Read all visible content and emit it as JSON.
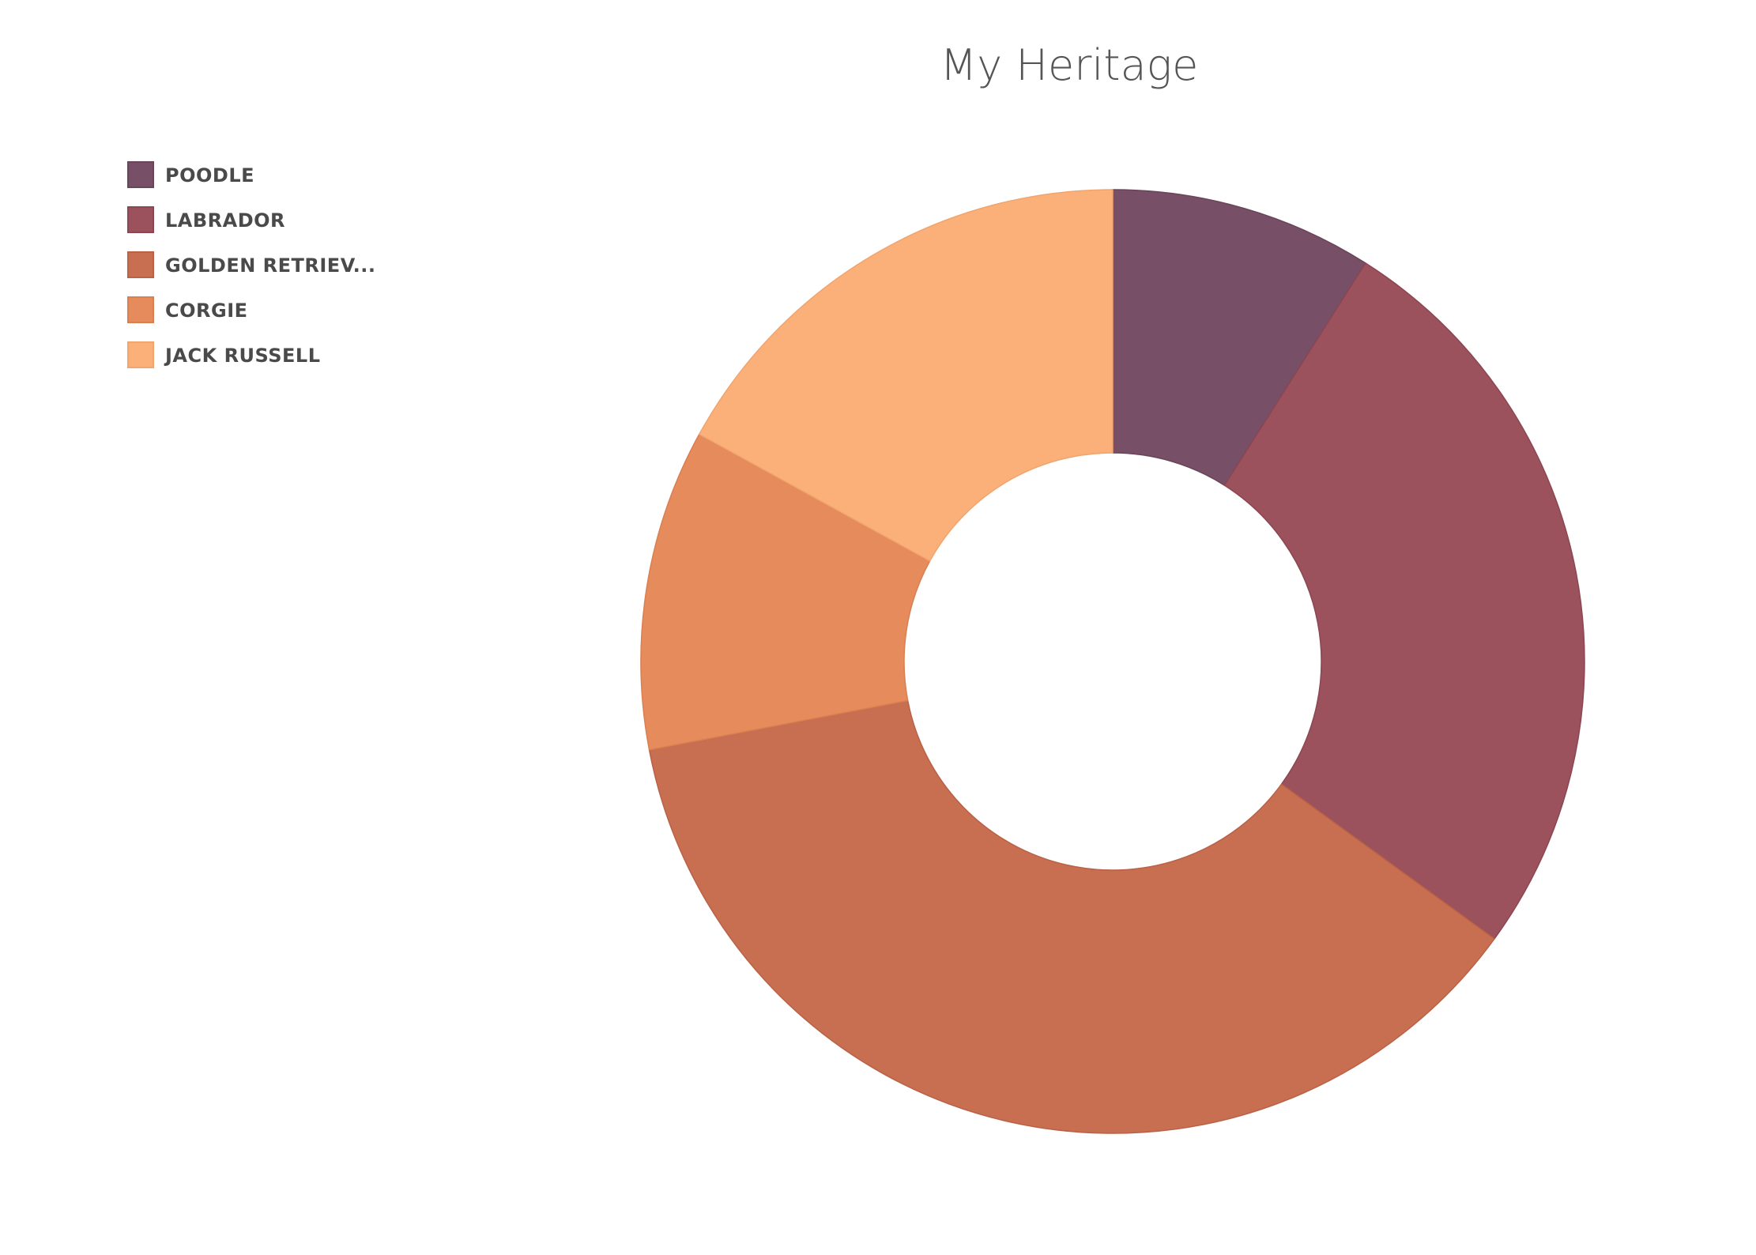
{
  "chart_data": {
    "type": "pie",
    "donut": true,
    "title": "My Heritage",
    "legend_position": "top-left",
    "categories": [
      "POODLE",
      "LABRADOR",
      "GOLDEN RETRIEV...",
      "CORGIE",
      "JACK RUSSELL"
    ],
    "values": [
      9,
      26,
      37,
      11,
      17
    ],
    "colors": [
      "#774f66",
      "#9b525c",
      "#c86e51",
      "#e68b5c",
      "#fcb079"
    ],
    "edge_colors": [
      "#6a4459",
      "#8c4651",
      "#b96246",
      "#d97f51",
      "#f0a46e"
    ]
  }
}
